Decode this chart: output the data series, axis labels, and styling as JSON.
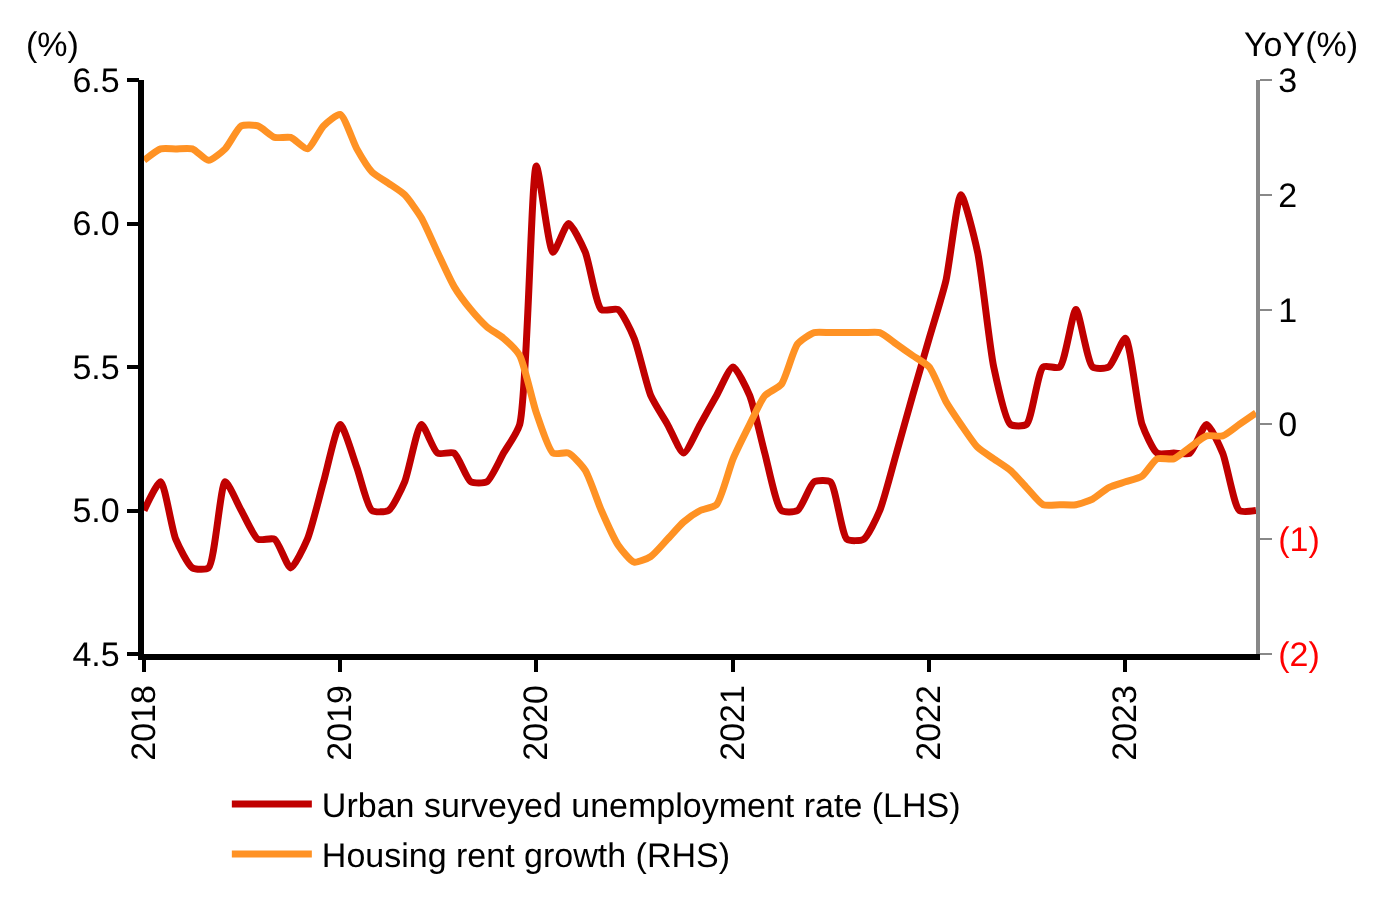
{
  "chart_data": {
    "type": "line",
    "ylabel": "(%)",
    "y2label": "YoY(%)",
    "x": [
      "2018-01",
      "2018-02",
      "2018-03",
      "2018-04",
      "2018-05",
      "2018-06",
      "2018-07",
      "2018-08",
      "2018-09",
      "2018-10",
      "2018-11",
      "2018-12",
      "2019-01",
      "2019-02",
      "2019-03",
      "2019-04",
      "2019-05",
      "2019-06",
      "2019-07",
      "2019-08",
      "2019-09",
      "2019-10",
      "2019-11",
      "2019-12",
      "2020-01",
      "2020-02",
      "2020-03",
      "2020-04",
      "2020-05",
      "2020-06",
      "2020-07",
      "2020-08",
      "2020-09",
      "2020-10",
      "2020-11",
      "2020-12",
      "2021-01",
      "2021-02",
      "2021-03",
      "2021-04",
      "2021-05",
      "2021-06",
      "2021-07",
      "2021-08",
      "2021-09",
      "2021-10",
      "2021-11",
      "2021-12",
      "2022-01",
      "2022-02",
      "2022-03",
      "2022-04",
      "2022-05",
      "2022-06",
      "2022-07",
      "2022-08",
      "2022-09",
      "2022-10",
      "2022-11",
      "2022-12",
      "2023-01",
      "2023-02",
      "2023-03",
      "2023-04",
      "2023-05",
      "2023-06",
      "2023-07",
      "2023-08",
      "2023-09"
    ],
    "series": [
      {
        "name": "Urban surveyed unemployment rate (LHS)",
        "color": "#c00000",
        "values": [
          5.0,
          5.1,
          4.9,
          4.8,
          4.8,
          5.1,
          5.0,
          4.9,
          4.9,
          4.8,
          4.9,
          5.1,
          5.3,
          5.15,
          5.0,
          5.0,
          5.1,
          5.3,
          5.2,
          5.2,
          5.1,
          5.1,
          5.2,
          5.3,
          6.2,
          5.9,
          6.0,
          5.9,
          5.7,
          5.7,
          5.6,
          5.4,
          5.3,
          5.2,
          5.3,
          5.4,
          5.5,
          5.4,
          5.2,
          5.0,
          5.0,
          5.1,
          5.1,
          4.9,
          4.9,
          5.0,
          5.2,
          5.4,
          5.6,
          5.8,
          6.1,
          5.9,
          5.5,
          5.3,
          5.3,
          5.5,
          5.5,
          5.7,
          5.5,
          5.5,
          5.6,
          5.3,
          5.2,
          5.2,
          5.2,
          5.3,
          5.2,
          5.0,
          5.0
        ]
      },
      {
        "name": "Housing rent growth (RHS)",
        "color": "#ff9224",
        "axis": "y2",
        "values": [
          2.3,
          2.4,
          2.4,
          2.4,
          2.3,
          2.4,
          2.6,
          2.6,
          2.5,
          2.5,
          2.4,
          2.6,
          2.7,
          2.4,
          2.2,
          2.1,
          2.0,
          1.8,
          1.5,
          1.2,
          1.0,
          0.85,
          0.75,
          0.6,
          0.1,
          -0.25,
          -0.25,
          -0.4,
          -0.75,
          -1.05,
          -1.2,
          -1.15,
          -1.0,
          -0.85,
          -0.75,
          -0.7,
          -0.3,
          0.0,
          0.25,
          0.35,
          0.7,
          0.8,
          0.8,
          0.8,
          0.8,
          0.8,
          0.7,
          0.6,
          0.5,
          0.2,
          0.0,
          -0.2,
          -0.3,
          -0.4,
          -0.55,
          -0.7,
          -0.7,
          -0.7,
          -0.65,
          -0.55,
          -0.5,
          -0.45,
          -0.3,
          -0.3,
          -0.2,
          -0.1,
          -0.1,
          0.0,
          0.1
        ]
      }
    ],
    "xlim": [
      "2018-01",
      "2023-09"
    ],
    "xticks": [
      {
        "value": "2018-01",
        "label": "2018"
      },
      {
        "value": "2019-01",
        "label": "2019"
      },
      {
        "value": "2020-01",
        "label": "2020"
      },
      {
        "value": "2021-01",
        "label": "2021"
      },
      {
        "value": "2022-01",
        "label": "2022"
      },
      {
        "value": "2023-01",
        "label": "2023"
      }
    ],
    "ylim": [
      4.5,
      6.5
    ],
    "yticks": [
      {
        "value": 4.5,
        "label": "4.5"
      },
      {
        "value": 5.0,
        "label": "5.0"
      },
      {
        "value": 5.5,
        "label": "5.5"
      },
      {
        "value": 6.0,
        "label": "6.0"
      },
      {
        "value": 6.5,
        "label": "6.5"
      }
    ],
    "y2lim": [
      -2,
      3
    ],
    "y2ticks": [
      {
        "value": -2,
        "label": "(2)"
      },
      {
        "value": -1,
        "label": "(1)"
      },
      0,
      1,
      2,
      3
    ],
    "legend": "bottom",
    "marker": "none",
    "line_style": "solid"
  }
}
